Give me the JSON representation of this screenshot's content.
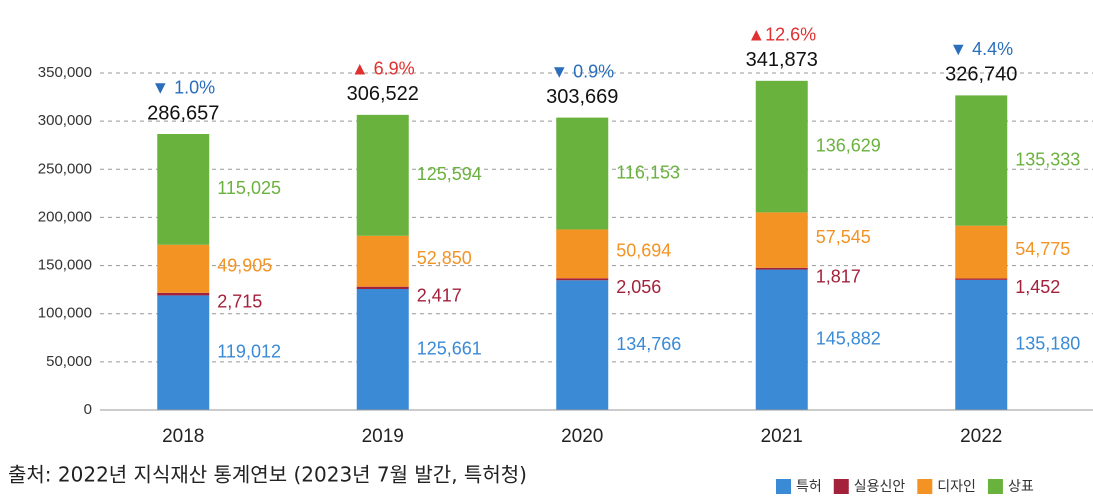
{
  "chart_data": {
    "type": "stacked_bar",
    "categories": [
      "2018",
      "2019",
      "2020",
      "2021",
      "2022"
    ],
    "series": [
      {
        "name": "특허",
        "color": "#3a8ad6",
        "values": [
          119012,
          125661,
          134766,
          145882,
          135180
        ],
        "value_labels": [
          "119,012",
          "125,661",
          "134,766",
          "145,882",
          "135,180"
        ]
      },
      {
        "name": "실용신안",
        "color": "#a3213a",
        "values": [
          2715,
          2417,
          2056,
          1817,
          1452
        ],
        "value_labels": [
          "2,715",
          "2,417",
          "2,056",
          "1,817",
          "1,452"
        ]
      },
      {
        "name": "디자인",
        "color": "#f39324",
        "values": [
          49905,
          52850,
          50694,
          57545,
          54775
        ],
        "value_labels": [
          "49,905",
          "52,850",
          "50,694",
          "57,545",
          "54,775"
        ]
      },
      {
        "name": "상표",
        "color": "#6ab23e",
        "values": [
          115025,
          125594,
          116153,
          136629,
          135333
        ],
        "value_labels": [
          "115,025",
          "125,594",
          "116,153",
          "136,629",
          "135,333"
        ]
      }
    ],
    "totals": {
      "values": [
        286657,
        306522,
        303669,
        341873,
        326740
      ],
      "value_labels": [
        "286,657",
        "306,522",
        "303,669",
        "341,873",
        "326,740"
      ]
    },
    "changes": [
      {
        "text": "▼ 1.0%",
        "color": "#2a6ebb"
      },
      {
        "text": "▲ 6.9%",
        "color": "#e03030"
      },
      {
        "text": "▼ 0.9%",
        "color": "#2a6ebb"
      },
      {
        "text": "▲12.6%",
        "color": "#e03030"
      },
      {
        "text": "▼ 4.4%",
        "color": "#2a6ebb"
      }
    ],
    "ylim": [
      0,
      350000
    ],
    "yticks": [
      0,
      {
        "value": 50000,
        "label": "50,000"
      },
      {
        "value": 100000,
        "label": "100,000"
      },
      {
        "value": 150000,
        "label": "150,000"
      },
      {
        "value": 200000,
        "label": "200,000"
      },
      {
        "value": 250000,
        "label": "250,000"
      },
      {
        "value": 300000,
        "label": "300,000"
      },
      {
        "value": 350000,
        "label": "350,000"
      }
    ],
    "grid": true,
    "legend": "bottom-right",
    "source": "출처: 2022년 지식재산 통계연보 (2023년 7월 발간, 특허청)"
  }
}
